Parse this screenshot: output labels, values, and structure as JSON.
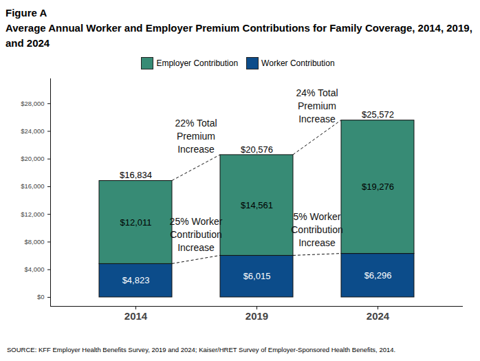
{
  "chart_data": {
    "type": "bar",
    "title": "Figure A",
    "subtitle": "Average Annual Worker and Employer Premium Contributions for Family Coverage, 2014, 2019, and 2024",
    "caption": "SOURCE: KFF Employer Health Benefits Survey, 2019 and 2024; Kaiser/HRET Survey of Employer-Sponsored Health Benefits, 2014.",
    "categories": [
      "2014",
      "2019",
      "2024"
    ],
    "series": [
      {
        "name": "Worker Contribution",
        "color": "#0c4c8a",
        "values": [
          4823,
          6015,
          6296
        ],
        "value_labels": [
          "$4,823",
          "$6,015",
          "$6,296"
        ],
        "annotations": [
          {
            "text": "25% Worker\nContribution\nIncrease",
            "between": [
              "2014",
              "2019"
            ]
          },
          {
            "text": "5% Worker\nContribution\nIncrease",
            "between": [
              "2019",
              "2024"
            ]
          }
        ]
      },
      {
        "name": "Employer Contribution",
        "color": "#378b75",
        "values": [
          12011,
          14561,
          19276
        ],
        "value_labels": [
          "$12,011",
          "$14,561",
          "$19,276"
        ]
      }
    ],
    "totals": {
      "values": [
        16834,
        20576,
        25572
      ],
      "value_labels": [
        "$16,834",
        "$20,576",
        "$25,572"
      ],
      "annotations": [
        {
          "text": "22% Total\nPremium\nIncrease",
          "between": [
            "2014",
            "2019"
          ]
        },
        {
          "text": "24% Total\nPremium\nIncrease",
          "between": [
            "2019",
            "2024"
          ]
        }
      ]
    },
    "ylim": [
      -1300,
      31600
    ],
    "yticks": [
      {
        "value": 0,
        "label": "$0"
      },
      {
        "value": 4000,
        "label": "$4,000"
      },
      {
        "value": 8000,
        "label": "$8,000"
      },
      {
        "value": 12000,
        "label": "$12,000"
      },
      {
        "value": 16000,
        "label": "$16,000"
      },
      {
        "value": 20000,
        "label": "$20,000"
      },
      {
        "value": 24000,
        "label": "$24,000"
      },
      {
        "value": 28000,
        "label": "$28,000"
      }
    ],
    "grid": false,
    "stacked": true,
    "data_labels": true,
    "legend": "top"
  }
}
